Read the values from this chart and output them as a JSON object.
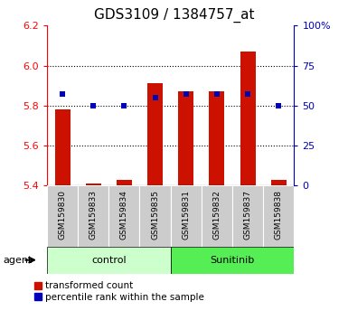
{
  "title": "GDS3109 / 1384757_at",
  "samples": [
    "GSM159830",
    "GSM159833",
    "GSM159834",
    "GSM159835",
    "GSM159831",
    "GSM159832",
    "GSM159837",
    "GSM159838"
  ],
  "red_bar_bottom": 5.4,
  "red_bar_top": [
    5.78,
    5.41,
    5.43,
    5.91,
    5.87,
    5.87,
    6.07,
    5.43
  ],
  "blue_pct": [
    57,
    50,
    50,
    55,
    57,
    57,
    57,
    50
  ],
  "ylim_left": [
    5.4,
    6.2
  ],
  "ylim_right": [
    0,
    100
  ],
  "yticks_left": [
    5.4,
    5.6,
    5.8,
    6.0,
    6.2
  ],
  "yticks_right": [
    0,
    25,
    50,
    75,
    100
  ],
  "ytick_labels_right": [
    "0",
    "25",
    "50",
    "75",
    "100%"
  ],
  "grid_yvals": [
    5.6,
    5.8,
    6.0
  ],
  "groups": [
    {
      "label": "control",
      "indices": [
        0,
        1,
        2,
        3
      ],
      "color": "#ccffcc"
    },
    {
      "label": "Sunitinib",
      "indices": [
        4,
        5,
        6,
        7
      ],
      "color": "#55ee55"
    }
  ],
  "bar_color": "#cc1100",
  "blue_color": "#0000bb",
  "sample_bg": "#cccccc",
  "title_fontsize": 11,
  "tick_fontsize": 8,
  "sample_fontsize": 6.5,
  "group_fontsize": 8,
  "legend_fontsize": 7.5
}
